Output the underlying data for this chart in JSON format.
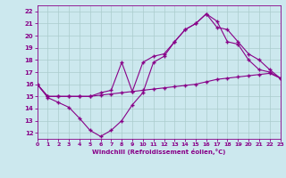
{
  "bg_color": "#cce8ee",
  "line_color": "#880088",
  "grid_color": "#aacccc",
  "xlim": [
    0,
    23
  ],
  "ylim": [
    11.5,
    22.5
  ],
  "xticks": [
    0,
    1,
    2,
    3,
    4,
    5,
    6,
    7,
    8,
    9,
    10,
    11,
    12,
    13,
    14,
    15,
    16,
    17,
    18,
    19,
    20,
    21,
    22,
    23
  ],
  "yticks": [
    12,
    13,
    14,
    15,
    16,
    17,
    18,
    19,
    20,
    21,
    22
  ],
  "xlabel": "Windchill (Refroidissement éolien,°C)",
  "line1_x": [
    0,
    1,
    2,
    3,
    4,
    5,
    6,
    7,
    8,
    9,
    10,
    11,
    12,
    13,
    14,
    15,
    16,
    17,
    18,
    19,
    20,
    21,
    22,
    23
  ],
  "line1_y": [
    16.0,
    14.9,
    14.5,
    14.1,
    13.2,
    12.2,
    11.7,
    12.2,
    13.0,
    14.3,
    15.3,
    17.8,
    18.3,
    19.5,
    20.5,
    21.0,
    21.8,
    21.2,
    19.5,
    19.3,
    18.0,
    17.2,
    17.0,
    16.5
  ],
  "line2_x": [
    0,
    1,
    2,
    3,
    4,
    5,
    6,
    7,
    8,
    9,
    10,
    11,
    12,
    13,
    14,
    15,
    16,
    17,
    18,
    19,
    20,
    21,
    22,
    23
  ],
  "line2_y": [
    16.0,
    15.0,
    15.0,
    15.0,
    15.0,
    15.0,
    15.3,
    15.5,
    17.8,
    15.4,
    17.8,
    18.3,
    18.5,
    19.5,
    20.5,
    21.0,
    21.8,
    20.7,
    20.5,
    19.5,
    18.5,
    18.0,
    17.2,
    16.5
  ],
  "line3_x": [
    0,
    1,
    2,
    3,
    4,
    5,
    6,
    7,
    8,
    9,
    10,
    11,
    12,
    13,
    14,
    15,
    16,
    17,
    18,
    19,
    20,
    21,
    22,
    23
  ],
  "line3_y": [
    16.0,
    15.0,
    15.0,
    15.0,
    15.0,
    15.0,
    15.1,
    15.2,
    15.3,
    15.4,
    15.5,
    15.6,
    15.7,
    15.8,
    15.9,
    16.0,
    16.2,
    16.4,
    16.5,
    16.6,
    16.7,
    16.8,
    16.9,
    16.5
  ]
}
